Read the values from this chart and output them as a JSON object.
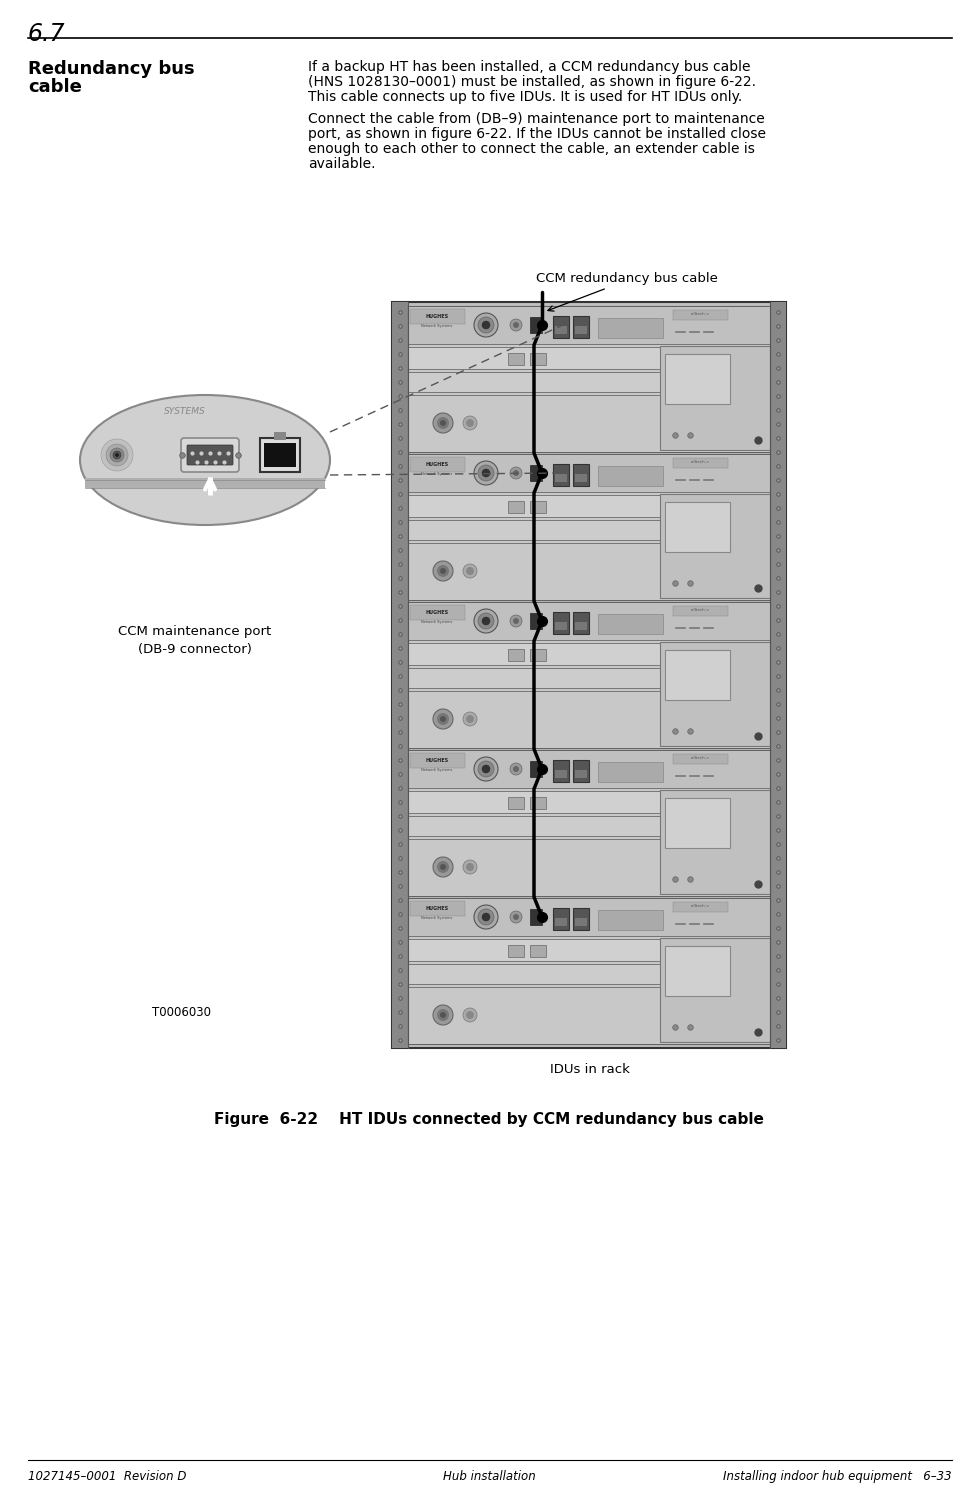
{
  "page_number": "6.7",
  "section_title_bold": "Redundancy bus\ncable",
  "body_text_line1": "If a backup HT has been installed, a CCM redundancy bus cable",
  "body_text_line2": "(HNS 1028130–0001) must be installed, as shown in figure 6-22.",
  "body_text_line3": "This cable connects up to five IDUs. It is used for HT IDUs only.",
  "body_text_line5": "Connect the cable from (DB–9) maintenance port to maintenance",
  "body_text_line6": "port, as shown in figure 6-22. If the IDUs cannot be installed close",
  "body_text_line7": "enough to each other to connect the cable, an extender cable is",
  "body_text_line8": "available.",
  "figure_caption": "Figure  6-22    HT IDUs connected by CCM redundancy bus cable",
  "label_ccm_cable": "CCM redundancy bus cable",
  "label_ccm_port": "CCM maintenance port\n(DB-9 connector)",
  "label_idus_rack": "IDUs in rack",
  "label_t0006030": "T0006030",
  "footer_left": "1027145–0001  Revision D",
  "footer_center": "Hub installation",
  "footer_right": "Installing indoor hub equipment   6–33",
  "bg_color": "#ffffff",
  "text_color": "#000000"
}
